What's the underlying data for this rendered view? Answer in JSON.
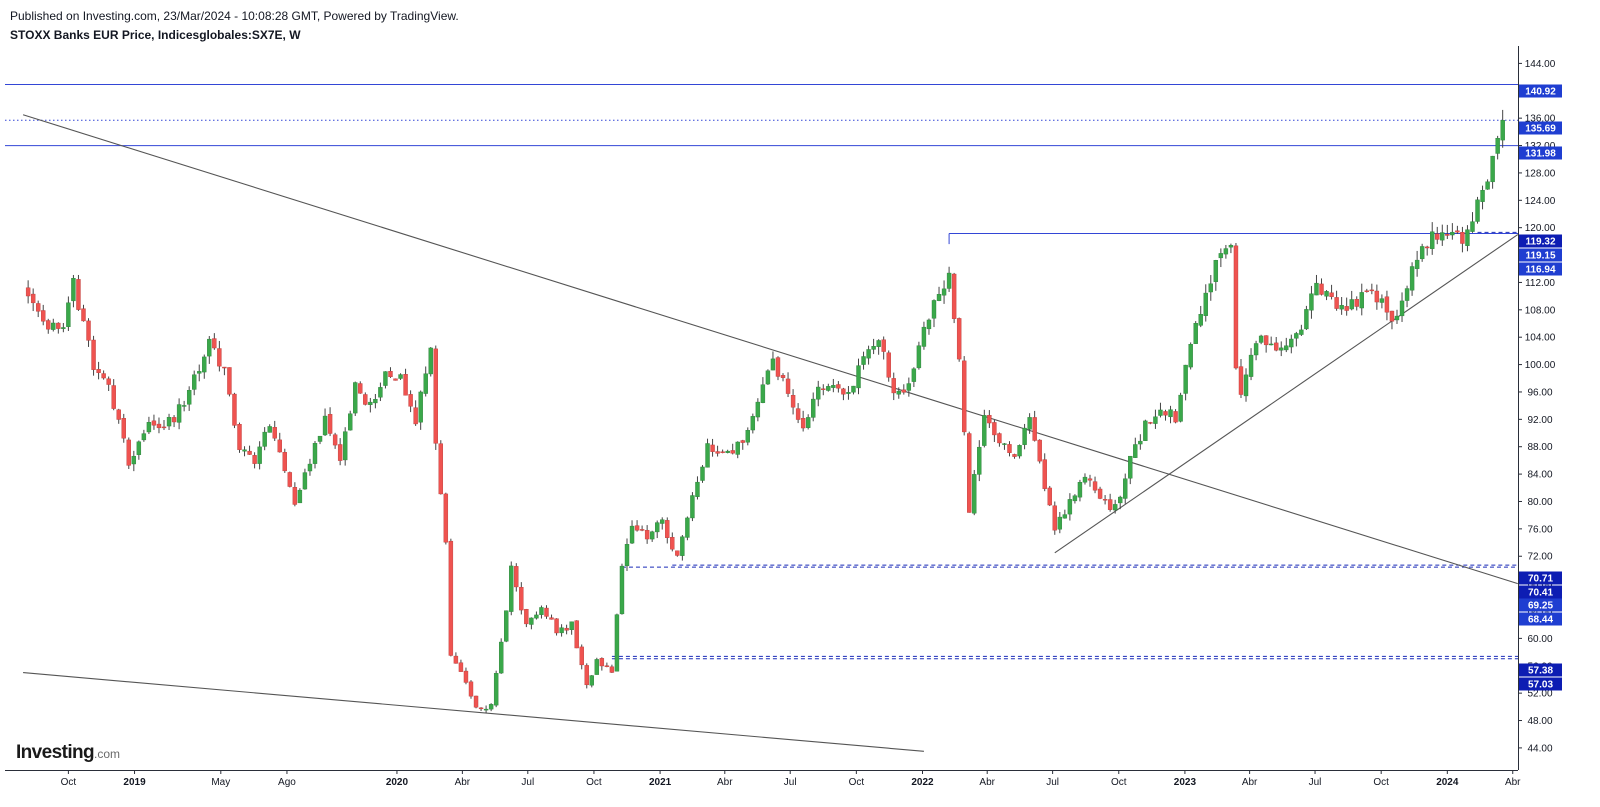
{
  "header": {
    "published": "Published on Investing.com, 23/Mar/2024 - 10:08:28 GMT, Powered by TradingView.",
    "title": "STOXX Banks EUR Price, Indicesglobales:SX7E, W"
  },
  "logo": {
    "main": "Investing",
    "suffix": ".com"
  },
  "colors": {
    "up": "#26a69a",
    "up_fill": "#3aa84a",
    "down": "#ef5350",
    "level_line": "#3346d6",
    "trend_line": "#555555",
    "axis_text": "#131722",
    "label_bg": "#1f3ed1",
    "label_bg_dashed": "#0d1db3"
  },
  "chart_data": {
    "type": "candlestick",
    "interval": "W",
    "ylim": [
      42,
      148
    ],
    "y_ticks": [
      "44.00",
      "48.00",
      "52.00",
      "56.00",
      "60.00",
      "64.00",
      "68.00",
      "72.00",
      "76.00",
      "80.00",
      "84.00",
      "88.00",
      "92.00",
      "96.00",
      "100.00",
      "104.00",
      "108.00",
      "112.00",
      "116.00",
      "120.00",
      "124.00",
      "128.00",
      "132.00",
      "136.00",
      "140.00",
      "144.00"
    ],
    "x_ticks": [
      {
        "label": "Oct",
        "date": "2018-10-01",
        "bold": false
      },
      {
        "label": "2019",
        "date": "2019-01-01",
        "bold": true
      },
      {
        "label": "May",
        "date": "2019-05-01",
        "bold": false
      },
      {
        "label": "Ago",
        "date": "2019-08-01",
        "bold": false
      },
      {
        "label": "2020",
        "date": "2020-01-01",
        "bold": true
      },
      {
        "label": "Abr",
        "date": "2020-04-01",
        "bold": false
      },
      {
        "label": "Jul",
        "date": "2020-07-01",
        "bold": false
      },
      {
        "label": "Oct",
        "date": "2020-10-01",
        "bold": false
      },
      {
        "label": "2021",
        "date": "2021-01-01",
        "bold": true
      },
      {
        "label": "Abr",
        "date": "2021-04-01",
        "bold": false
      },
      {
        "label": "Jul",
        "date": "2021-07-01",
        "bold": false
      },
      {
        "label": "Oct",
        "date": "2021-10-01",
        "bold": false
      },
      {
        "label": "2022",
        "date": "2022-01-01",
        "bold": true
      },
      {
        "label": "Abr",
        "date": "2022-04-01",
        "bold": false
      },
      {
        "label": "Jul",
        "date": "2022-07-01",
        "bold": false
      },
      {
        "label": "Oct",
        "date": "2022-10-01",
        "bold": false
      },
      {
        "label": "2023",
        "date": "2023-01-01",
        "bold": true
      },
      {
        "label": "Abr",
        "date": "2023-04-01",
        "bold": false
      },
      {
        "label": "Jul",
        "date": "2023-07-01",
        "bold": false
      },
      {
        "label": "Oct",
        "date": "2023-10-01",
        "bold": false
      },
      {
        "label": "2024",
        "date": "2024-01-01",
        "bold": true
      },
      {
        "label": "Abr",
        "date": "2024-04-01",
        "bold": false
      }
    ],
    "close_anchors": [
      [
        "2018-08-06",
        111
      ],
      [
        "2018-08-27",
        106
      ],
      [
        "2018-09-24",
        105
      ],
      [
        "2018-10-08",
        112
      ],
      [
        "2018-11-05",
        100
      ],
      [
        "2018-11-26",
        97
      ],
      [
        "2018-12-24",
        86
      ],
      [
        "2019-01-21",
        91
      ],
      [
        "2019-02-25",
        92
      ],
      [
        "2019-03-18",
        96
      ],
      [
        "2019-04-15",
        103
      ],
      [
        "2019-05-06",
        99
      ],
      [
        "2019-05-27",
        88
      ],
      [
        "2019-06-17",
        86
      ],
      [
        "2019-07-08",
        91
      ],
      [
        "2019-07-29",
        85
      ],
      [
        "2019-08-12",
        79
      ],
      [
        "2019-09-02",
        86
      ],
      [
        "2019-09-23",
        92
      ],
      [
        "2019-10-14",
        86
      ],
      [
        "2019-11-04",
        97
      ],
      [
        "2019-11-25",
        94
      ],
      [
        "2019-12-16",
        99
      ],
      [
        "2020-01-06",
        98
      ],
      [
        "2020-01-27",
        92
      ],
      [
        "2020-02-17",
        102
      ],
      [
        "2020-02-24",
        88
      ],
      [
        "2020-03-09",
        74
      ],
      [
        "2020-03-16",
        57
      ],
      [
        "2020-03-30",
        55
      ],
      [
        "2020-04-20",
        50
      ],
      [
        "2020-05-11",
        50
      ],
      [
        "2020-05-25",
        59
      ],
      [
        "2020-06-08",
        70
      ],
      [
        "2020-06-29",
        62
      ],
      [
        "2020-07-20",
        65
      ],
      [
        "2020-08-10",
        61
      ],
      [
        "2020-08-31",
        62
      ],
      [
        "2020-09-21",
        53
      ],
      [
        "2020-10-05",
        57
      ],
      [
        "2020-10-26",
        55
      ],
      [
        "2020-11-09",
        71
      ],
      [
        "2020-11-23",
        77
      ],
      [
        "2020-12-14",
        75
      ],
      [
        "2021-01-04",
        77
      ],
      [
        "2021-01-25",
        72
      ],
      [
        "2021-02-15",
        81
      ],
      [
        "2021-03-08",
        88
      ],
      [
        "2021-04-05",
        87
      ],
      [
        "2021-04-26",
        89
      ],
      [
        "2021-05-17",
        95
      ],
      [
        "2021-06-07",
        100
      ],
      [
        "2021-06-28",
        96
      ],
      [
        "2021-07-19",
        91
      ],
      [
        "2021-08-09",
        96
      ],
      [
        "2021-08-30",
        97
      ],
      [
        "2021-09-20",
        96
      ],
      [
        "2021-10-11",
        101
      ],
      [
        "2021-11-01",
        104
      ],
      [
        "2021-11-22",
        96
      ],
      [
        "2021-12-13",
        97
      ],
      [
        "2022-01-03",
        106
      ],
      [
        "2022-01-24",
        110
      ],
      [
        "2022-02-07",
        114
      ],
      [
        "2022-02-21",
        100
      ],
      [
        "2022-03-07",
        79
      ],
      [
        "2022-03-28",
        93
      ],
      [
        "2022-04-18",
        89
      ],
      [
        "2022-05-09",
        86
      ],
      [
        "2022-05-30",
        92
      ],
      [
        "2022-06-20",
        82
      ],
      [
        "2022-07-04",
        76
      ],
      [
        "2022-07-25",
        80
      ],
      [
        "2022-08-15",
        84
      ],
      [
        "2022-09-05",
        80
      ],
      [
        "2022-09-26",
        79
      ],
      [
        "2022-10-17",
        86
      ],
      [
        "2022-11-07",
        91
      ],
      [
        "2022-11-28",
        94
      ],
      [
        "2022-12-19",
        92
      ],
      [
        "2023-01-09",
        103
      ],
      [
        "2023-01-30",
        110
      ],
      [
        "2023-02-20",
        117
      ],
      [
        "2023-03-06",
        118
      ],
      [
        "2023-03-13",
        100
      ],
      [
        "2023-03-20",
        96
      ],
      [
        "2023-04-10",
        104
      ],
      [
        "2023-05-01",
        103
      ],
      [
        "2023-05-22",
        103
      ],
      [
        "2023-06-12",
        106
      ],
      [
        "2023-07-03",
        112
      ],
      [
        "2023-07-24",
        109
      ],
      [
        "2023-08-14",
        108
      ],
      [
        "2023-09-04",
        110
      ],
      [
        "2023-09-25",
        110
      ],
      [
        "2023-10-16",
        106
      ],
      [
        "2023-11-06",
        112
      ],
      [
        "2023-11-27",
        117
      ],
      [
        "2023-12-11",
        119
      ],
      [
        "2024-01-01",
        119
      ],
      [
        "2024-01-22",
        118
      ],
      [
        "2024-02-12",
        123
      ],
      [
        "2024-02-26",
        127
      ],
      [
        "2024-03-11",
        132
      ],
      [
        "2024-03-18",
        135.69
      ]
    ],
    "levels": [
      {
        "value": 140.92,
        "label": "140.92",
        "style": "solid"
      },
      {
        "value": 135.69,
        "label": "135.69",
        "style": "dotted"
      },
      {
        "value": 131.98,
        "label": "131.98",
        "style": "solid"
      },
      {
        "value": 119.32,
        "label": "119.32",
        "style": "dashed"
      },
      {
        "value": 119.15,
        "label": "119.15",
        "style": "solid"
      },
      {
        "value": 116.94,
        "label": "116.94",
        "style": "none"
      },
      {
        "value": 70.71,
        "label": "70.71",
        "style": "dashed"
      },
      {
        "value": 70.41,
        "label": "70.41",
        "style": "dashed"
      },
      {
        "value": 69.25,
        "label": "69.25",
        "style": "none"
      },
      {
        "value": 68.44,
        "label": "68.44",
        "style": "none"
      },
      {
        "value": 57.38,
        "label": "57.38",
        "style": "dashed"
      },
      {
        "value": 57.03,
        "label": "57.03",
        "style": "dashed"
      }
    ],
    "trendlines": [
      {
        "name": "long-downtrend",
        "from": [
          "2018-07-30",
          136.5
        ],
        "to": [
          "2024-04-08",
          68.0
        ]
      },
      {
        "name": "lower-support",
        "from": [
          "2018-07-30",
          55.0
        ],
        "to": [
          "2022-01-03",
          43.5
        ]
      },
      {
        "name": "uptrend-support",
        "from": [
          "2022-07-04",
          72.5
        ],
        "to": [
          "2024-04-08",
          119.0
        ]
      }
    ]
  }
}
